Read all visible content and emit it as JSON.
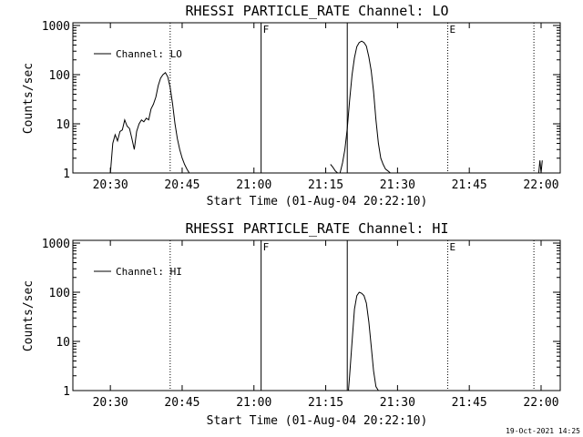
{
  "footer_timestamp": "19-Oct-2021 14:25",
  "chart_data": [
    {
      "type": "line",
      "title": "RHESSI PARTICLE_RATE Channel: LO",
      "xlabel": "Start Time (01-Aug-04 20:22:10)",
      "ylabel": "Counts/sec",
      "y_scale": "log",
      "ylim": [
        1,
        1000
      ],
      "y_ticks": [
        "1",
        "10",
        "100",
        "1000"
      ],
      "xlim": [
        "20:22:10",
        "22:04:00"
      ],
      "x_ticks": [
        "20:30",
        "20:45",
        "21:00",
        "21:15",
        "21:30",
        "21:45",
        "22:00"
      ],
      "grid": false,
      "legend_position": "top-left",
      "series": [
        {
          "name": "Channel: LO",
          "x": [
            "20:30:00",
            "20:30:30",
            "20:31:00",
            "20:31:30",
            "20:32:00",
            "20:32:30",
            "20:33:00",
            "20:33:30",
            "20:34:00",
            "20:34:30",
            "20:35:00",
            "20:35:30",
            "20:36:00",
            "20:36:30",
            "20:37:00",
            "20:37:30",
            "20:38:00",
            "20:38:30",
            "20:39:00",
            "20:39:30",
            "20:40:00",
            "20:40:30",
            "20:41:00",
            "20:41:30",
            "20:42:00",
            "20:42:30",
            "20:43:00",
            "20:43:30",
            "20:44:00",
            "20:44:30",
            "20:45:00",
            "20:45:30",
            "20:46:00",
            "20:46:30",
            "20:47:00",
            "20:47:30"
          ],
          "values": [
            1,
            4,
            6,
            4.5,
            7,
            7.5,
            12,
            9,
            8,
            5,
            3,
            7,
            10,
            12,
            11,
            13,
            12,
            20,
            25,
            35,
            60,
            85,
            100,
            110,
            90,
            55,
            25,
            10,
            5,
            3,
            2,
            1.5,
            1.2,
            1,
            null,
            null
          ]
        }
      ],
      "series_b": {
        "x": [
          "21:16:00",
          "21:16:30",
          "21:17:00",
          "21:17:30",
          "21:18:00",
          "21:18:30",
          "21:19:00",
          "21:19:30",
          "21:20:00",
          "21:20:30",
          "21:21:00",
          "21:21:30",
          "21:22:00",
          "21:22:30",
          "21:23:00",
          "21:23:30",
          "21:24:00",
          "21:24:30",
          "21:25:00",
          "21:25:30",
          "21:26:00",
          "21:26:30",
          "21:27:00",
          "21:27:30",
          "21:28:00",
          "21:28:30"
        ],
        "values": [
          1.5,
          1.3,
          1.1,
          1,
          1,
          1.6,
          3,
          8,
          30,
          100,
          220,
          370,
          450,
          480,
          450,
          380,
          230,
          120,
          45,
          12,
          4,
          2,
          1.5,
          1.2,
          1.1,
          1
        ]
      },
      "series_c": {
        "x": [
          "21:59:30",
          "21:59:45",
          "22:00:00",
          "22:00:15"
        ],
        "values": [
          1,
          1.8,
          1,
          1.8
        ]
      },
      "markers": [
        {
          "time": "20:42:30",
          "label": "",
          "style": "dotted"
        },
        {
          "time": "21:01:30",
          "label": "F",
          "style": "solid"
        },
        {
          "time": "21:19:30",
          "label": "",
          "style": "solid"
        },
        {
          "time": "21:40:30",
          "label": "E",
          "style": "dotted"
        },
        {
          "time": "21:58:30",
          "label": "",
          "style": "dotted"
        }
      ]
    },
    {
      "type": "line",
      "title": "RHESSI PARTICLE_RATE Channel: HI",
      "xlabel": "Start Time (01-Aug-04 20:22:10)",
      "ylabel": "Counts/sec",
      "y_scale": "log",
      "ylim": [
        1,
        1000
      ],
      "y_ticks": [
        "1",
        "10",
        "100",
        "1000"
      ],
      "xlim": [
        "20:22:10",
        "22:04:00"
      ],
      "x_ticks": [
        "20:30",
        "20:45",
        "21:00",
        "21:15",
        "21:30",
        "21:45",
        "22:00"
      ],
      "grid": false,
      "legend_position": "top-left",
      "series": [
        {
          "name": "Channel: HI",
          "x": [
            "21:19:45",
            "21:20:00",
            "21:20:30",
            "21:21:00",
            "21:21:30",
            "21:22:00",
            "21:22:30",
            "21:23:00",
            "21:23:30",
            "21:24:00",
            "21:24:30",
            "21:25:00",
            "21:25:30",
            "21:26:00"
          ],
          "values": [
            1,
            2,
            10,
            45,
            85,
            100,
            95,
            85,
            60,
            25,
            8,
            2.5,
            1.2,
            1
          ]
        }
      ],
      "markers": [
        {
          "time": "20:42:30",
          "label": "",
          "style": "dotted"
        },
        {
          "time": "21:01:30",
          "label": "F",
          "style": "solid"
        },
        {
          "time": "21:19:30",
          "label": "",
          "style": "solid"
        },
        {
          "time": "21:40:30",
          "label": "E",
          "style": "dotted"
        },
        {
          "time": "21:58:30",
          "label": "",
          "style": "dotted"
        }
      ]
    }
  ]
}
